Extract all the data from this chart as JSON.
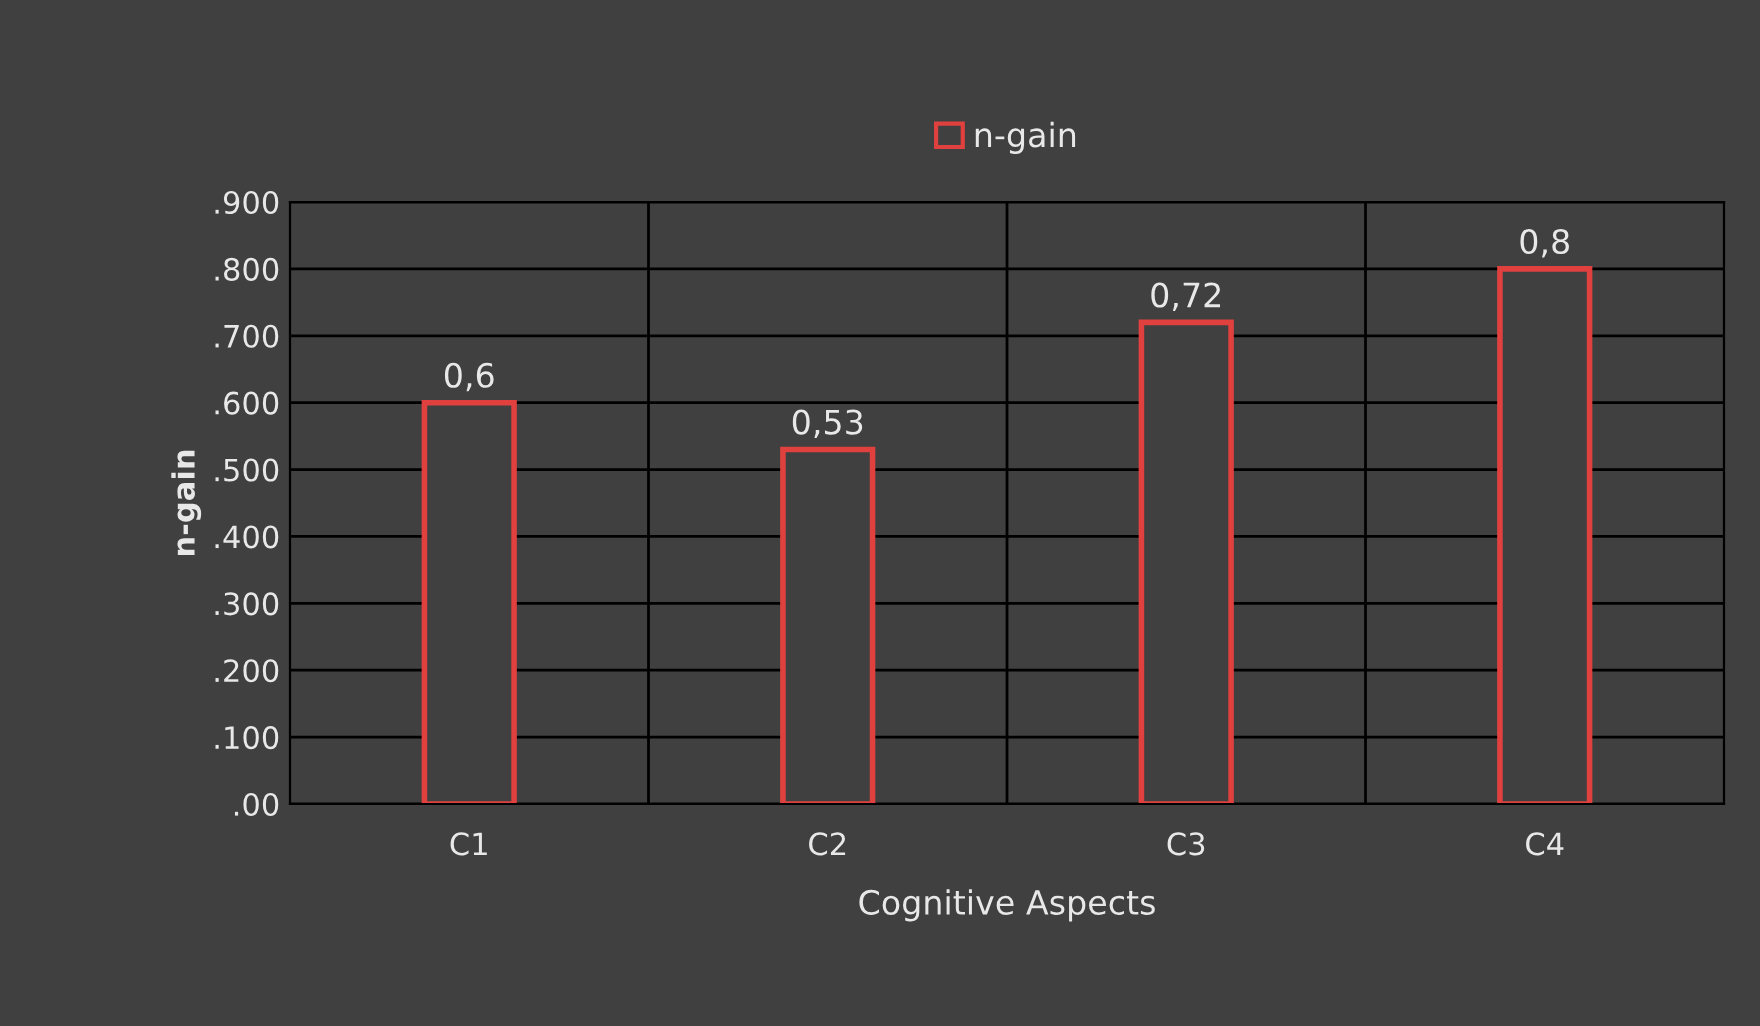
{
  "chart_data": {
    "type": "bar",
    "xlabel": "Cognitive Aspects",
    "ylabel": "n-gain",
    "categories": [
      "C1",
      "C2",
      "C3",
      "C4"
    ],
    "series": [
      {
        "name": "n-gain",
        "color": "#e0413f",
        "values": [
          0.6,
          0.53,
          0.72,
          0.8
        ],
        "value_labels": [
          "0,6",
          "0,53",
          "0,72",
          "0,8"
        ]
      }
    ],
    "ylim": [
      0,
      0.9
    ],
    "yticks": [
      {
        "value": 0,
        "label": ".00"
      },
      {
        "value": 0.1,
        "label": ".100"
      },
      {
        "value": 0.2,
        "label": ".200"
      },
      {
        "value": 0.3,
        "label": ".300"
      },
      {
        "value": 0.4,
        "label": ".400"
      },
      {
        "value": 0.5,
        "label": ".500"
      },
      {
        "value": 0.6,
        "label": ".600"
      },
      {
        "value": 0.7,
        "label": ".700"
      },
      {
        "value": 0.8,
        "label": ".800"
      },
      {
        "value": 0.9,
        "label": ".900"
      }
    ],
    "grid": true,
    "legend": "top"
  }
}
